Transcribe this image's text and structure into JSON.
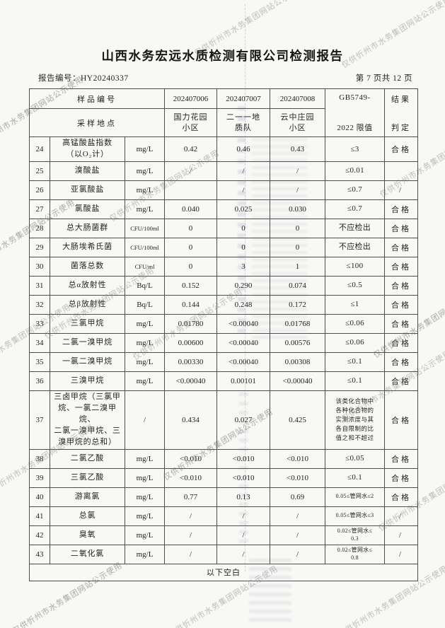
{
  "title": "山西水务宏远水质检测有限公司检测报告",
  "report_number": "报告编号：HY20240337",
  "page_indicator": "第 7 页共 12 页",
  "watermark_text": "仅供忻州市水务集团网站公示使用",
  "table": {
    "header": {
      "sample_id_label": "样品编号",
      "location_label": "采样地点",
      "sample_ids": [
        "202407006",
        "202407007",
        "202407008"
      ],
      "locations": [
        "国力花园小区",
        "二一一地质队",
        "云中庄园小区"
      ],
      "standard_line1": "GB5749-",
      "standard_line2": "2022 限值",
      "result_line1": "结果",
      "result_line2": "判定"
    },
    "rows": [
      {
        "no": "24",
        "name": "高锰酸盐指数\n（以O₂计）",
        "unit": "mg/L",
        "values": [
          "0.42",
          "0.46",
          "0.43"
        ],
        "limit": "≤3",
        "judge": "合格"
      },
      {
        "no": "25",
        "name": "溴酸盐",
        "unit": "mg/L",
        "values": [
          "/",
          "/",
          "/"
        ],
        "limit": "≤0.01",
        "judge": ""
      },
      {
        "no": "26",
        "name": "亚氯酸盐",
        "unit": "mg/L",
        "values": [
          "",
          "/",
          "/"
        ],
        "limit": "≤0.7",
        "judge": "/"
      },
      {
        "no": "27",
        "name": "氯酸盐",
        "unit": "mg/L",
        "values": [
          "0.040",
          "0.025",
          "0.030"
        ],
        "limit": "≤0.7",
        "judge": "合格"
      },
      {
        "no": "28",
        "name": "总大肠菌群",
        "unit": "CFU/100ml",
        "values": [
          "0",
          "0",
          "0"
        ],
        "limit": "不应检出",
        "judge": "合格"
      },
      {
        "no": "29",
        "name": "大肠埃希氏菌",
        "unit": "CFU/100ml",
        "values": [
          "0",
          "0",
          "0"
        ],
        "limit": "不应检出",
        "judge": "合格"
      },
      {
        "no": "30",
        "name": "菌落总数",
        "unit": "CFU/ml",
        "values": [
          "0",
          "3",
          "1"
        ],
        "limit": "≤100",
        "judge": "合格"
      },
      {
        "no": "31",
        "name": "总α放射性",
        "unit": "Bq/L",
        "values": [
          "0.152",
          "0.290",
          "0.074"
        ],
        "limit": "≤0.5",
        "judge": "合格"
      },
      {
        "no": "32",
        "name": "总β放射性",
        "unit": "Bq/L",
        "values": [
          "0.144",
          "0.248",
          "0.172"
        ],
        "limit": "≤1",
        "judge": "合格"
      },
      {
        "no": "33",
        "name": "三氯甲烷",
        "unit": "mg/L",
        "values": [
          "0.01780",
          "<0.00040",
          "0.01768"
        ],
        "limit": "≤0.06",
        "judge": "合格"
      },
      {
        "no": "34",
        "name": "二氯一溴甲烷",
        "unit": "mg/L",
        "values": [
          "0.00600",
          "<0.00040",
          "0.00576"
        ],
        "limit": "≤0.06",
        "judge": "合格"
      },
      {
        "no": "35",
        "name": "一氯二溴甲烷",
        "unit": "mg/L",
        "values": [
          "0.00330",
          "<0.00040",
          "0.00308"
        ],
        "limit": "≤0.1",
        "judge": "合格"
      },
      {
        "no": "36",
        "name": "三溴甲烷",
        "unit": "mg/L",
        "values": [
          "<0.00040",
          "0.00101",
          "<0.00040"
        ],
        "limit": "≤0.1",
        "judge": "合格"
      },
      {
        "no": "37",
        "name": "三卤甲烷（三氯甲\n烷、一氯二溴甲烷、\n二氯一溴甲烷、三\n溴甲烷的总和）",
        "unit": "/",
        "values": [
          "0.434",
          "0.027",
          "0.425"
        ],
        "limit": "该类化合物中\n各种化合物的\n实测浓度与其\n各自限制的比\n值之和不超过",
        "judge": "合格"
      },
      {
        "no": "38",
        "name": "二氯乙酸",
        "unit": "mg/L",
        "values": [
          "<0.010",
          "<0.010",
          "<0.010"
        ],
        "limit": "≤0.05",
        "judge": "合格"
      },
      {
        "no": "39",
        "name": "三氯乙酸",
        "unit": "mg/L",
        "values": [
          "<0.010",
          "<0.010",
          "<0.010"
        ],
        "limit": "≤0.1",
        "judge": "合格"
      },
      {
        "no": "40",
        "name": "游离氯",
        "unit": "mg/L",
        "values": [
          "0.77",
          "0.13",
          "0.69"
        ],
        "limit": "0.05≤管网水≤2",
        "judge": "合格"
      },
      {
        "no": "41",
        "name": "总氯",
        "unit": "mg/L",
        "values": [
          "/",
          "/",
          "/"
        ],
        "limit": "0.05≤管网水≤3",
        "judge": "/"
      },
      {
        "no": "42",
        "name": "臭氧",
        "unit": "mg/L",
        "values": [
          "/",
          "/",
          "/"
        ],
        "limit": "0.02≤管网水≤\n0.3",
        "judge": "/"
      },
      {
        "no": "43",
        "name": "二氧化氯",
        "unit": "mg/L",
        "values": [
          "/",
          "/",
          "/"
        ],
        "limit": "0.02≤管网水≤\n0.8",
        "judge": "/"
      }
    ],
    "footer_note": "以下空白"
  }
}
